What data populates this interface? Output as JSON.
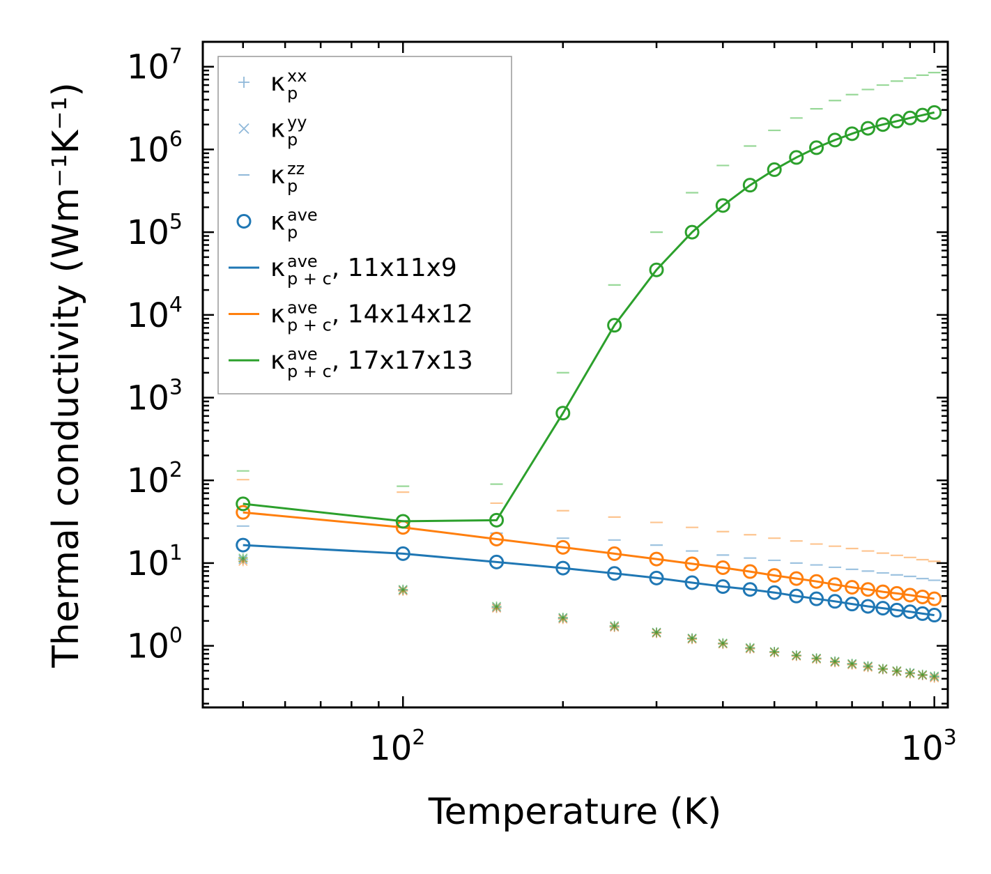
{
  "chart_data": {
    "type": "scatter",
    "xlabel": "Temperature (K)",
    "ylabel": "Thermal conductivity (Wm⁻¹K⁻¹)",
    "xscale": "log",
    "yscale": "log",
    "xlim": [
      42,
      1060
    ],
    "ylim": [
      0.18,
      20000000
    ],
    "x_ticks": [
      {
        "base": "10",
        "exp": "2",
        "value": 100
      },
      {
        "base": "10",
        "exp": "3",
        "value": 1000
      }
    ],
    "y_ticks": [
      {
        "base": "10",
        "exp": "0",
        "value": 1
      },
      {
        "base": "10",
        "exp": "1",
        "value": 10
      },
      {
        "base": "10",
        "exp": "2",
        "value": 100
      },
      {
        "base": "10",
        "exp": "3",
        "value": 1000
      },
      {
        "base": "10",
        "exp": "4",
        "value": 10000
      },
      {
        "base": "10",
        "exp": "5",
        "value": 100000
      },
      {
        "base": "10",
        "exp": "6",
        "value": 1000000
      },
      {
        "base": "10",
        "exp": "7",
        "value": 10000000
      }
    ],
    "legend": {
      "placement": "upper-left",
      "entries": [
        {
          "marker": "plus",
          "base": "κ",
          "sub": "p",
          "sup": "xx",
          "suffix": "",
          "color": "#8fb8d9"
        },
        {
          "marker": "cross",
          "base": "κ",
          "sub": "p",
          "sup": "yy",
          "suffix": "",
          "color": "#8fb8d9"
        },
        {
          "marker": "hline",
          "base": "κ",
          "sub": "p",
          "sup": "zz",
          "suffix": "",
          "color": "#8fb8d9"
        },
        {
          "marker": "circle",
          "base": "κ",
          "sub": "p",
          "sup": "ave",
          "suffix": "",
          "color": "#1f77b4"
        },
        {
          "marker": "line",
          "base": "κ",
          "sub": "p + c",
          "sup": "ave",
          "suffix": ", 11x11x9",
          "color": "#1f77b4"
        },
        {
          "marker": "line",
          "base": "κ",
          "sub": "p + c",
          "sup": "ave",
          "suffix": ", 14x14x12",
          "color": "#ff7f0e"
        },
        {
          "marker": "line",
          "base": "κ",
          "sub": "p + c",
          "sup": "ave",
          "suffix": ", 17x17x13",
          "color": "#2ca02c"
        }
      ]
    },
    "x": [
      50,
      100,
      150,
      200,
      250,
      300,
      350,
      400,
      450,
      500,
      550,
      600,
      650,
      700,
      750,
      800,
      850,
      900,
      950,
      1000
    ],
    "series": [
      {
        "name": "11x11x9",
        "color": "#1f77b4",
        "zz_color": "#9ec3e0",
        "kxx": [
          11,
          4.7,
          2.9,
          2.15,
          1.7,
          1.44,
          1.22,
          1.06,
          0.93,
          0.84,
          0.76,
          0.7,
          0.64,
          0.6,
          0.56,
          0.52,
          0.49,
          0.47,
          0.44,
          0.42
        ],
        "kyy": [
          11,
          4.7,
          2.9,
          2.15,
          1.7,
          1.44,
          1.22,
          1.06,
          0.93,
          0.84,
          0.76,
          0.7,
          0.64,
          0.6,
          0.56,
          0.52,
          0.49,
          0.47,
          0.44,
          0.42
        ],
        "kzz": [
          28,
          32,
          23,
          20,
          19,
          16.5,
          14,
          12.5,
          11.5,
          10.8,
          10,
          9.5,
          8.9,
          8.4,
          8,
          7.6,
          7.2,
          6.9,
          6.5,
          6.2
        ],
        "kave": [
          16.5,
          13,
          10.3,
          8.7,
          7.5,
          6.6,
          5.8,
          5.2,
          4.8,
          4.4,
          4.0,
          3.7,
          3.45,
          3.2,
          3.0,
          2.85,
          2.7,
          2.58,
          2.45,
          2.35
        ],
        "kpc": [
          16.5,
          13,
          10.3,
          8.7,
          7.5,
          6.6,
          5.8,
          5.2,
          4.8,
          4.4,
          4.0,
          3.7,
          3.45,
          3.2,
          3.0,
          2.85,
          2.7,
          2.58,
          2.45,
          2.35
        ]
      },
      {
        "name": "14x14x12",
        "color": "#ff7f0e",
        "zz_color": "#fdc48f",
        "kxx": [
          10.5,
          4.6,
          2.85,
          2.1,
          1.68,
          1.42,
          1.2,
          1.05,
          0.92,
          0.83,
          0.75,
          0.69,
          0.63,
          0.59,
          0.55,
          0.52,
          0.49,
          0.46,
          0.44,
          0.41
        ],
        "kyy": [
          10.5,
          4.6,
          2.85,
          2.1,
          1.68,
          1.42,
          1.2,
          1.05,
          0.92,
          0.83,
          0.75,
          0.69,
          0.63,
          0.59,
          0.55,
          0.52,
          0.49,
          0.46,
          0.44,
          0.41
        ],
        "kzz": [
          102,
          72,
          53,
          43,
          36,
          31,
          27,
          24,
          22,
          20,
          18.5,
          17,
          16,
          15,
          14,
          13.2,
          12.4,
          11.7,
          11,
          10.5
        ],
        "kave": [
          41,
          27,
          19.5,
          15.5,
          13,
          11.2,
          9.8,
          8.8,
          7.9,
          7.1,
          6.5,
          6.0,
          5.5,
          5.1,
          4.8,
          4.5,
          4.3,
          4.1,
          3.9,
          3.7
        ],
        "kpc": [
          41,
          27,
          19.5,
          15.5,
          13,
          11.2,
          9.8,
          8.8,
          7.9,
          7.1,
          6.5,
          6.0,
          5.5,
          5.1,
          4.8,
          4.5,
          4.3,
          4.1,
          3.9,
          3.7
        ]
      },
      {
        "name": "17x17x13",
        "color": "#2ca02c",
        "zz_color": "#98d898",
        "kxx": [
          11.5,
          4.8,
          3.0,
          2.2,
          1.75,
          1.46,
          1.24,
          1.08,
          0.95,
          0.85,
          0.77,
          0.71,
          0.65,
          0.61,
          0.57,
          0.53,
          0.5,
          0.47,
          0.45,
          0.43
        ],
        "kyy": [
          11.5,
          4.8,
          3.0,
          2.2,
          1.75,
          1.46,
          1.24,
          1.08,
          0.95,
          0.85,
          0.77,
          0.71,
          0.65,
          0.61,
          0.57,
          0.53,
          0.5,
          0.47,
          0.45,
          0.43
        ],
        "kzz": [
          130,
          85,
          90,
          2000,
          23000,
          100000,
          300000,
          640000,
          1100000,
          1700000,
          2400000,
          3100000,
          3900000,
          4600000,
          5300000,
          6000000,
          6700000,
          7300000,
          7900000,
          8500000
        ],
        "kave": [
          52,
          32,
          33,
          650,
          7500,
          35000,
          100000,
          210000,
          370000,
          570000,
          800000,
          1050000,
          1300000,
          1550000,
          1800000,
          2000000,
          2200000,
          2400000,
          2600000,
          2800000
        ],
        "kpc": [
          52,
          32,
          33,
          650,
          7500,
          35000,
          100000,
          210000,
          370000,
          570000,
          800000,
          1050000,
          1300000,
          1550000,
          1800000,
          2000000,
          2200000,
          2400000,
          2600000,
          2800000
        ]
      }
    ]
  }
}
